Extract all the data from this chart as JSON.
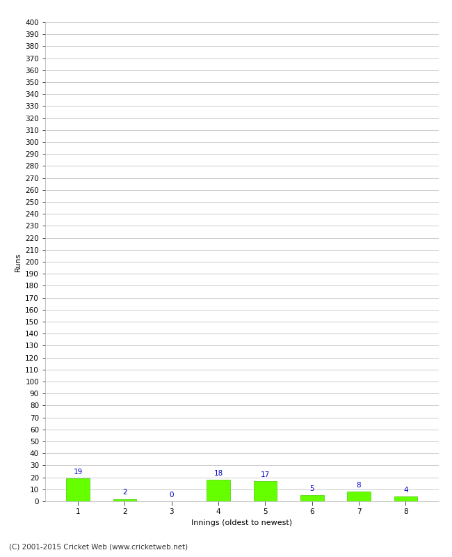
{
  "innings": [
    1,
    2,
    3,
    4,
    5,
    6,
    7,
    8
  ],
  "runs": [
    19,
    2,
    0,
    18,
    17,
    5,
    8,
    4
  ],
  "bar_color": "#66ff00",
  "bar_edge_color": "#44cc00",
  "annotation_color": "#0000cc",
  "xlabel": "Innings (oldest to newest)",
  "ylabel": "Runs",
  "ylim": [
    0,
    400
  ],
  "yticks": [
    0,
    10,
    20,
    30,
    40,
    50,
    60,
    70,
    80,
    90,
    100,
    110,
    120,
    130,
    140,
    150,
    160,
    170,
    180,
    190,
    200,
    210,
    220,
    230,
    240,
    250,
    260,
    270,
    280,
    290,
    300,
    310,
    320,
    330,
    340,
    350,
    360,
    370,
    380,
    390,
    400
  ],
  "background_color": "#ffffff",
  "grid_color": "#cccccc",
  "footer": "(C) 2001-2015 Cricket Web (www.cricketweb.net)",
  "annotation_fontsize": 7.5,
  "axis_label_fontsize": 8,
  "tick_fontsize": 7.5,
  "footer_fontsize": 7.5
}
